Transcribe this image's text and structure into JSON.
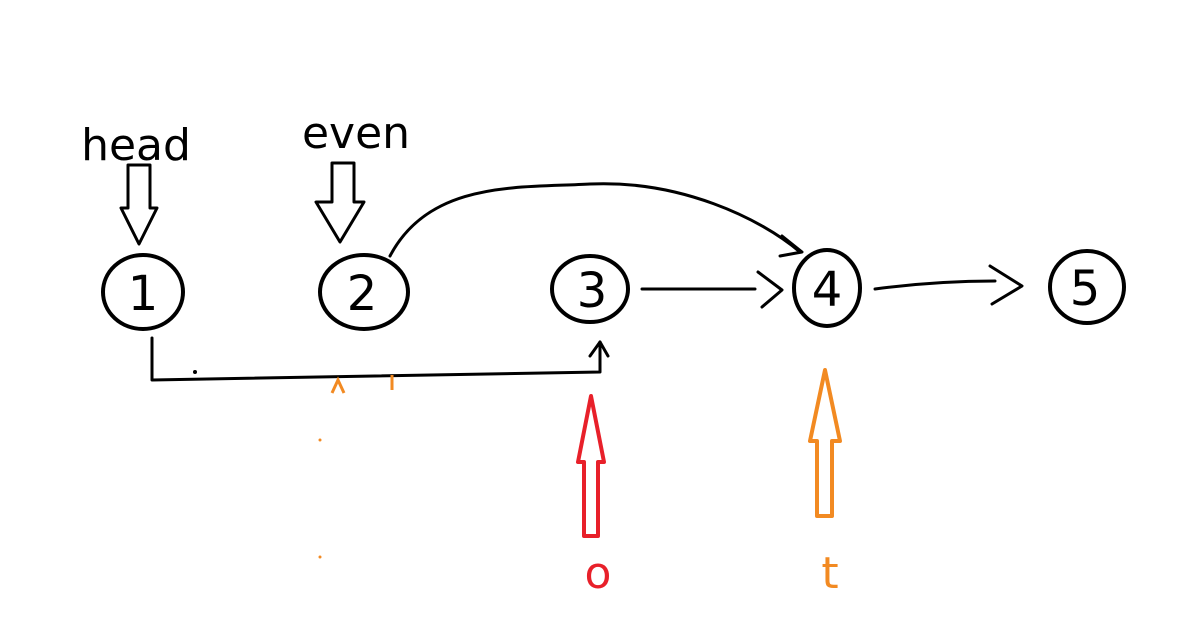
{
  "nodes": [
    {
      "label": "1"
    },
    {
      "label": "2"
    },
    {
      "label": "3"
    },
    {
      "label": "4"
    },
    {
      "label": "5"
    }
  ],
  "pointers": {
    "head": {
      "label": "head",
      "color": "#000000"
    },
    "even": {
      "label": "even",
      "color": "#000000"
    },
    "o": {
      "label": "o",
      "color": "#e8202a"
    },
    "t": {
      "label": "t",
      "color": "#f28a22"
    }
  },
  "colors": {
    "ink": "#000000",
    "red": "#e8202a",
    "orange": "#f28a22"
  }
}
